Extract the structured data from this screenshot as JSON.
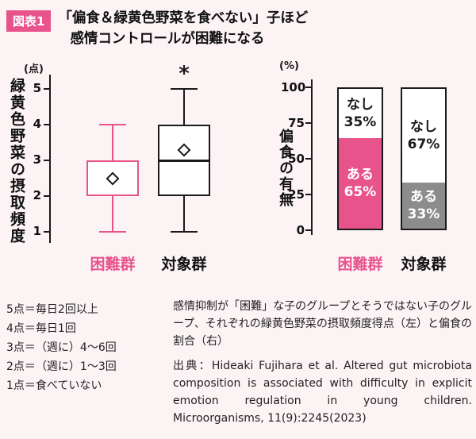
{
  "accent": "#e8538c",
  "gray": "#8c8c8c",
  "background": "#fcf3f5",
  "header": {
    "badge": "図表1",
    "title_line1": "「偏食＆緑黄色野菜を食べない」子ほど",
    "title_line2": "感情コントロールが困難になる"
  },
  "chart_data": [
    {
      "type": "boxplot",
      "unit": "(点)",
      "ylabel": "緑黄色野菜の摂取頻度",
      "ylim": [
        1,
        5
      ],
      "yticks": [
        5,
        4,
        3,
        2,
        1
      ],
      "categories": [
        "困難群",
        "対象群"
      ],
      "boxes": [
        {
          "name": "困難群",
          "low": 1,
          "q1": 2,
          "median": 3,
          "q3": 3,
          "high": 4,
          "mean": 2.5,
          "color": "#e8538c",
          "annotation": ""
        },
        {
          "name": "対象群",
          "low": 1,
          "q1": 2,
          "median": 3,
          "q3": 4,
          "high": 5,
          "mean": 3.3,
          "color": "#1a1a1a",
          "annotation": "*"
        }
      ]
    },
    {
      "type": "stacked-bar",
      "unit": "(%)",
      "ylabel": "偏食の有無",
      "ylim": [
        0,
        100
      ],
      "yticks": [
        100,
        75,
        50,
        25,
        0
      ],
      "categories": [
        "困難群",
        "対象群"
      ],
      "bars": [
        {
          "name": "困難群",
          "segments": [
            {
              "label": "なし",
              "value": 35,
              "fill": "#ffffff",
              "text": "#1a1a1a"
            },
            {
              "label": "ある",
              "value": 65,
              "fill": "#e8538c",
              "text": "#ffffff"
            }
          ]
        },
        {
          "name": "対象群",
          "segments": [
            {
              "label": "なし",
              "value": 67,
              "fill": "#ffffff",
              "text": "#1a1a1a"
            },
            {
              "label": "ある",
              "value": 33,
              "fill": "#8c8c8c",
              "text": "#ffffff"
            }
          ]
        }
      ]
    }
  ],
  "legend": {
    "lines": [
      "5点＝毎日2回以上",
      "4点＝毎日1回",
      "3点＝（週に）4～6回",
      "2点＝（週に）1～3回",
      "1点＝食べていない"
    ]
  },
  "caption": {
    "body": "感情抑制が「困難」な子のグループとそうではない子のグループ、それぞれの緑黄色野菜の摂取頻度得点（左）と偏食の割合（右）",
    "source": "出典：Hideaki Fujihara et al. Altered gut microbiota composition is associated with difficulty in explicit emotion regulation in young children. Microorganisms, 11(9):2245(2023)"
  }
}
